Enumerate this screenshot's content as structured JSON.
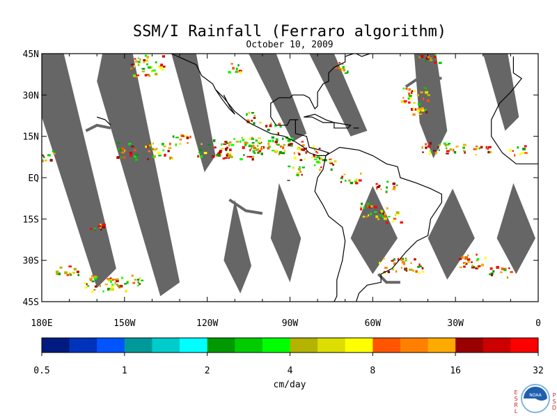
{
  "title": "SSM/I Rainfall (Ferraro algorithm)",
  "date": "October 10, 2009",
  "map": {
    "lat_labels": [
      "45N",
      "30N",
      "15N",
      "EQ",
      "15S",
      "30S",
      "45S"
    ],
    "lat_values": [
      45,
      30,
      15,
      0,
      -15,
      -30,
      -45
    ],
    "lon_labels": [
      "180E",
      "150W",
      "120W",
      "90W",
      "60W",
      "30W",
      "0"
    ],
    "lon_values": [
      -180,
      -150,
      -120,
      -90,
      -60,
      -30,
      0
    ],
    "lat_range": [
      -45,
      45
    ],
    "lon_range": [
      -180,
      0
    ],
    "swath_color": "#666666",
    "coast_color": "#000000"
  },
  "colorbar": {
    "label": "cm/day",
    "tick_labels": [
      "0.5",
      "1",
      "2",
      "4",
      "8",
      "16",
      "32"
    ],
    "colors": [
      "#001a80",
      "#0033bb",
      "#0055ff",
      "#009999",
      "#00cccc",
      "#00ffff",
      "#009900",
      "#00cc00",
      "#00ff00",
      "#b3b300",
      "#dddd00",
      "#ffff00",
      "#ff5500",
      "#ff8000",
      "#ffaa00",
      "#990000",
      "#cc0000",
      "#ff0000"
    ]
  },
  "logo": {
    "left_letters": "ESRL",
    "right_letters": "PSD",
    "name": "NOAA"
  }
}
